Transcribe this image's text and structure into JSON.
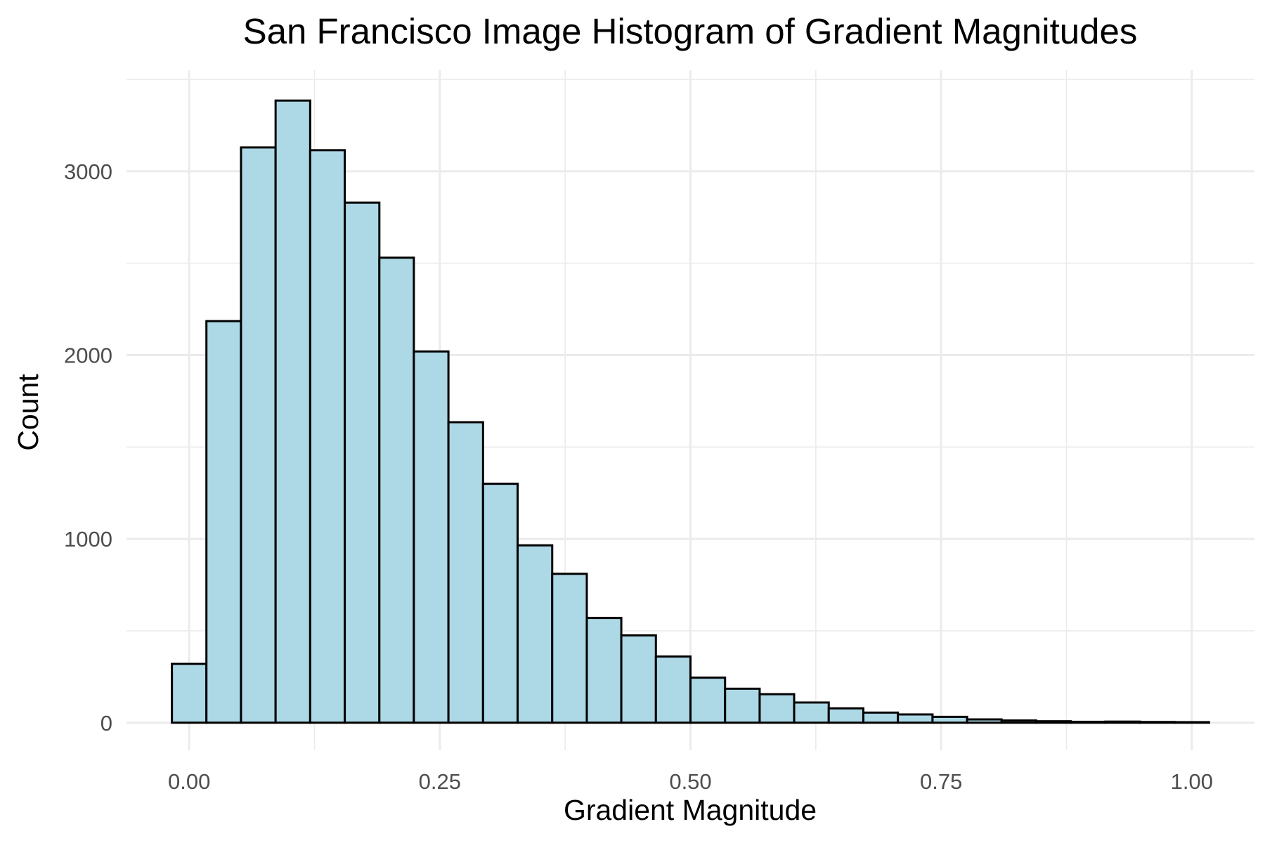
{
  "chart_data": {
    "type": "bar",
    "title": "San Francisco Image Histogram of Gradient Magnitudes",
    "xlabel": "Gradient Magnitude",
    "ylabel": "Count",
    "xlim": [
      -0.0625,
      1.0625
    ],
    "ylim": [
      -150,
      3550
    ],
    "grid": true,
    "legend": "none",
    "bar_fill": "#add8e6",
    "bar_stroke": "#000000",
    "x_ticks": [
      {
        "value": 0.0,
        "label": "0.00"
      },
      {
        "value": 0.25,
        "label": "0.25"
      },
      {
        "value": 0.5,
        "label": "0.50"
      },
      {
        "value": 0.75,
        "label": "0.75"
      },
      {
        "value": 1.0,
        "label": "1.00"
      }
    ],
    "x_minor": [
      0.125,
      0.375,
      0.625,
      0.875
    ],
    "y_ticks": [
      {
        "value": 0,
        "label": "0"
      },
      {
        "value": 1000,
        "label": "1000"
      },
      {
        "value": 2000,
        "label": "2000"
      },
      {
        "value": 3000,
        "label": "3000"
      }
    ],
    "y_minor": [
      500,
      1500,
      2500,
      3500
    ],
    "bins": [
      {
        "start": -0.0172,
        "end": 0.0172,
        "count": 320
      },
      {
        "start": 0.0172,
        "end": 0.0517,
        "count": 2185
      },
      {
        "start": 0.0517,
        "end": 0.0862,
        "count": 3130
      },
      {
        "start": 0.0862,
        "end": 0.1207,
        "count": 3385
      },
      {
        "start": 0.1207,
        "end": 0.1552,
        "count": 3115
      },
      {
        "start": 0.1552,
        "end": 0.1897,
        "count": 2830
      },
      {
        "start": 0.1897,
        "end": 0.2241,
        "count": 2530
      },
      {
        "start": 0.2241,
        "end": 0.2586,
        "count": 2020
      },
      {
        "start": 0.2586,
        "end": 0.2931,
        "count": 1635
      },
      {
        "start": 0.2931,
        "end": 0.3276,
        "count": 1300
      },
      {
        "start": 0.3276,
        "end": 0.3621,
        "count": 965
      },
      {
        "start": 0.3621,
        "end": 0.3966,
        "count": 810
      },
      {
        "start": 0.3966,
        "end": 0.431,
        "count": 570
      },
      {
        "start": 0.431,
        "end": 0.4655,
        "count": 475
      },
      {
        "start": 0.4655,
        "end": 0.5,
        "count": 360
      },
      {
        "start": 0.5,
        "end": 0.5345,
        "count": 245
      },
      {
        "start": 0.5345,
        "end": 0.569,
        "count": 185
      },
      {
        "start": 0.569,
        "end": 0.6034,
        "count": 155
      },
      {
        "start": 0.6034,
        "end": 0.6379,
        "count": 110
      },
      {
        "start": 0.6379,
        "end": 0.6724,
        "count": 78
      },
      {
        "start": 0.6724,
        "end": 0.7069,
        "count": 55
      },
      {
        "start": 0.7069,
        "end": 0.7414,
        "count": 45
      },
      {
        "start": 0.7414,
        "end": 0.7759,
        "count": 32
      },
      {
        "start": 0.7759,
        "end": 0.8103,
        "count": 18
      },
      {
        "start": 0.8103,
        "end": 0.8448,
        "count": 12
      },
      {
        "start": 0.8448,
        "end": 0.8793,
        "count": 8
      },
      {
        "start": 0.8793,
        "end": 0.9138,
        "count": 5
      },
      {
        "start": 0.9138,
        "end": 0.9483,
        "count": 6
      },
      {
        "start": 0.9483,
        "end": 0.9828,
        "count": 4
      },
      {
        "start": 0.9828,
        "end": 1.0172,
        "count": 3
      }
    ]
  }
}
